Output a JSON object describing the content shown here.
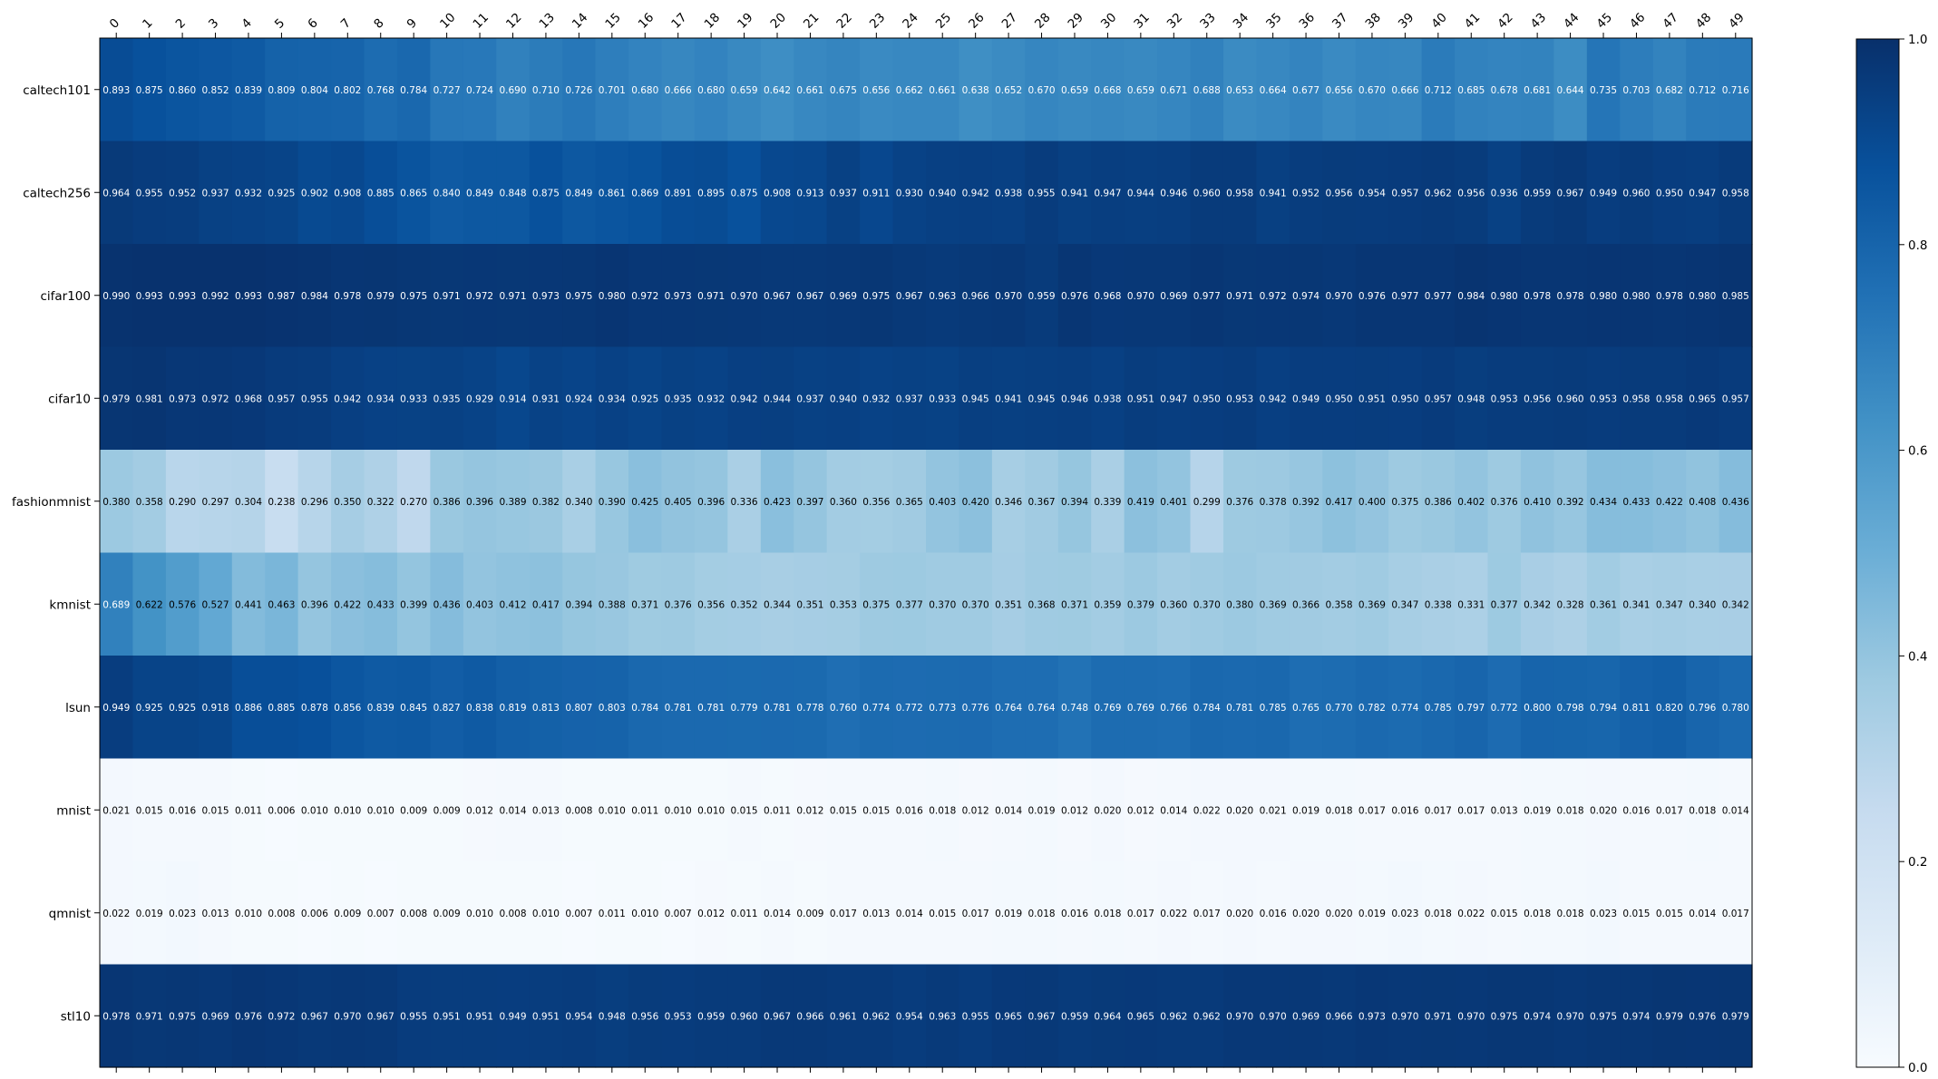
{
  "chart_data": {
    "type": "heatmap",
    "colormap": "Blues",
    "x_labels": [
      "0",
      "1",
      "2",
      "3",
      "4",
      "5",
      "6",
      "7",
      "8",
      "9",
      "10",
      "11",
      "12",
      "13",
      "14",
      "15",
      "16",
      "17",
      "18",
      "19",
      "20",
      "21",
      "22",
      "23",
      "24",
      "25",
      "26",
      "27",
      "28",
      "29",
      "30",
      "31",
      "32",
      "33",
      "34",
      "35",
      "36",
      "37",
      "38",
      "39",
      "40",
      "41",
      "42",
      "43",
      "44",
      "45",
      "46",
      "47",
      "48",
      "49"
    ],
    "y_labels": [
      "caltech101",
      "caltech256",
      "cifar100",
      "cifar10",
      "fashionmnist",
      "kmnist",
      "lsun",
      "mnist",
      "qmnist",
      "stl10"
    ],
    "values": [
      [
        "0.893",
        "0.875",
        "0.860",
        "0.852",
        "0.839",
        "0.809",
        "0.804",
        "0.802",
        "0.768",
        "0.784",
        "0.727",
        "0.724",
        "0.690",
        "0.710",
        "0.726",
        "0.701",
        "0.680",
        "0.666",
        "0.680",
        "0.659",
        "0.642",
        "0.661",
        "0.675",
        "0.656",
        "0.662",
        "0.661",
        "0.638",
        "0.652",
        "0.670",
        "0.659",
        "0.668",
        "0.659",
        "0.671",
        "0.688",
        "0.653",
        "0.664",
        "0.677",
        "0.656",
        "0.670",
        "0.666",
        "0.712",
        "0.685",
        "0.678",
        "0.681",
        "0.644",
        "0.735",
        "0.703",
        "0.682",
        "0.712",
        "0.716"
      ],
      [
        "0.964",
        "0.955",
        "0.952",
        "0.937",
        "0.932",
        "0.925",
        "0.902",
        "0.908",
        "0.885",
        "0.865",
        "0.840",
        "0.849",
        "0.848",
        "0.875",
        "0.849",
        "0.861",
        "0.869",
        "0.891",
        "0.895",
        "0.875",
        "0.908",
        "0.913",
        "0.937",
        "0.911",
        "0.930",
        "0.940",
        "0.942",
        "0.938",
        "0.955",
        "0.941",
        "0.947",
        "0.944",
        "0.946",
        "0.960",
        "0.958",
        "0.941",
        "0.952",
        "0.956",
        "0.954",
        "0.957",
        "0.962",
        "0.956",
        "0.936",
        "0.959",
        "0.967",
        "0.949",
        "0.960",
        "0.950",
        "0.947",
        "0.958"
      ],
      [
        "0.990",
        "0.993",
        "0.993",
        "0.992",
        "0.993",
        "0.987",
        "0.984",
        "0.978",
        "0.979",
        "0.975",
        "0.971",
        "0.972",
        "0.971",
        "0.973",
        "0.975",
        "0.980",
        "0.972",
        "0.973",
        "0.971",
        "0.970",
        "0.967",
        "0.967",
        "0.969",
        "0.975",
        "0.967",
        "0.963",
        "0.966",
        "0.970",
        "0.959",
        "0.976",
        "0.968",
        "0.970",
        "0.969",
        "0.977",
        "0.971",
        "0.972",
        "0.974",
        "0.970",
        "0.976",
        "0.977",
        "0.977",
        "0.984",
        "0.980",
        "0.978",
        "0.978",
        "0.980",
        "0.980",
        "0.978",
        "0.980",
        "0.985"
      ],
      [
        "0.979",
        "0.981",
        "0.973",
        "0.972",
        "0.968",
        "0.957",
        "0.955",
        "0.942",
        "0.934",
        "0.933",
        "0.935",
        "0.929",
        "0.914",
        "0.931",
        "0.924",
        "0.934",
        "0.925",
        "0.935",
        "0.932",
        "0.942",
        "0.944",
        "0.937",
        "0.940",
        "0.932",
        "0.937",
        "0.933",
        "0.945",
        "0.941",
        "0.945",
        "0.946",
        "0.938",
        "0.951",
        "0.947",
        "0.950",
        "0.953",
        "0.942",
        "0.949",
        "0.950",
        "0.951",
        "0.950",
        "0.957",
        "0.948",
        "0.953",
        "0.956",
        "0.960",
        "0.953",
        "0.958",
        "0.958",
        "0.965",
        "0.957"
      ],
      [
        "0.380",
        "0.358",
        "0.290",
        "0.297",
        "0.304",
        "0.238",
        "0.296",
        "0.350",
        "0.322",
        "0.270",
        "0.386",
        "0.396",
        "0.389",
        "0.382",
        "0.340",
        "0.390",
        "0.425",
        "0.405",
        "0.396",
        "0.336",
        "0.423",
        "0.397",
        "0.360",
        "0.356",
        "0.365",
        "0.403",
        "0.420",
        "0.346",
        "0.367",
        "0.394",
        "0.339",
        "0.419",
        "0.401",
        "0.299",
        "0.376",
        "0.378",
        "0.392",
        "0.417",
        "0.400",
        "0.375",
        "0.386",
        "0.402",
        "0.376",
        "0.410",
        "0.392",
        "0.434",
        "0.433",
        "0.422",
        "0.408",
        "0.436"
      ],
      [
        "0.689",
        "0.622",
        "0.576",
        "0.527",
        "0.441",
        "0.463",
        "0.396",
        "0.422",
        "0.433",
        "0.399",
        "0.436",
        "0.403",
        "0.412",
        "0.417",
        "0.394",
        "0.388",
        "0.371",
        "0.376",
        "0.356",
        "0.352",
        "0.344",
        "0.351",
        "0.353",
        "0.375",
        "0.377",
        "0.370",
        "0.370",
        "0.351",
        "0.368",
        "0.371",
        "0.359",
        "0.379",
        "0.360",
        "0.370",
        "0.380",
        "0.369",
        "0.366",
        "0.358",
        "0.369",
        "0.347",
        "0.338",
        "0.331",
        "0.377",
        "0.342",
        "0.328",
        "0.361",
        "0.341",
        "0.347",
        "0.340",
        "0.342"
      ],
      [
        "0.949",
        "0.925",
        "0.925",
        "0.918",
        "0.886",
        "0.885",
        "0.878",
        "0.856",
        "0.839",
        "0.845",
        "0.827",
        "0.838",
        "0.819",
        "0.813",
        "0.807",
        "0.803",
        "0.784",
        "0.781",
        "0.781",
        "0.779",
        "0.781",
        "0.778",
        "0.760",
        "0.774",
        "0.772",
        "0.773",
        "0.776",
        "0.764",
        "0.764",
        "0.748",
        "0.769",
        "0.769",
        "0.766",
        "0.784",
        "0.781",
        "0.785",
        "0.765",
        "0.770",
        "0.782",
        "0.774",
        "0.785",
        "0.797",
        "0.772",
        "0.800",
        "0.798",
        "0.794",
        "0.811",
        "0.820",
        "0.796",
        "0.780"
      ],
      [
        "0.021",
        "0.015",
        "0.016",
        "0.015",
        "0.011",
        "0.006",
        "0.010",
        "0.010",
        "0.010",
        "0.009",
        "0.009",
        "0.012",
        "0.014",
        "0.013",
        "0.008",
        "0.010",
        "0.011",
        "0.010",
        "0.010",
        "0.015",
        "0.011",
        "0.012",
        "0.015",
        "0.015",
        "0.016",
        "0.018",
        "0.012",
        "0.014",
        "0.019",
        "0.012",
        "0.020",
        "0.012",
        "0.014",
        "0.022",
        "0.020",
        "0.021",
        "0.019",
        "0.018",
        "0.017",
        "0.016",
        "0.017",
        "0.017",
        "0.013",
        "0.019",
        "0.018",
        "0.020",
        "0.016",
        "0.017",
        "0.018",
        "0.014"
      ],
      [
        "0.022",
        "0.019",
        "0.023",
        "0.013",
        "0.010",
        "0.008",
        "0.006",
        "0.009",
        "0.007",
        "0.008",
        "0.009",
        "0.010",
        "0.008",
        "0.010",
        "0.007",
        "0.011",
        "0.010",
        "0.007",
        "0.012",
        "0.011",
        "0.014",
        "0.009",
        "0.017",
        "0.013",
        "0.014",
        "0.015",
        "0.017",
        "0.019",
        "0.018",
        "0.016",
        "0.018",
        "0.017",
        "0.022",
        "0.017",
        "0.020",
        "0.016",
        "0.020",
        "0.020",
        "0.019",
        "0.023",
        "0.018",
        "0.022",
        "0.015",
        "0.018",
        "0.018",
        "0.023",
        "0.015",
        "0.015",
        "0.014",
        "0.017"
      ],
      [
        "0.978",
        "0.971",
        "0.975",
        "0.969",
        "0.976",
        "0.972",
        "0.967",
        "0.970",
        "0.967",
        "0.955",
        "0.951",
        "0.951",
        "0.949",
        "0.951",
        "0.954",
        "0.948",
        "0.956",
        "0.953",
        "0.959",
        "0.960",
        "0.967",
        "0.966",
        "0.961",
        "0.962",
        "0.954",
        "0.963",
        "0.955",
        "0.965",
        "0.967",
        "0.959",
        "0.964",
        "0.965",
        "0.962",
        "0.962",
        "0.970",
        "0.970",
        "0.969",
        "0.966",
        "0.973",
        "0.970",
        "0.971",
        "0.970",
        "0.975",
        "0.974",
        "0.970",
        "0.975",
        "0.974",
        "0.979",
        "0.976",
        "0.979"
      ]
    ],
    "colorbar": {
      "range": [
        0.0,
        1.0
      ],
      "ticks": [
        "0.0",
        "0.2",
        "0.4",
        "0.6",
        "0.8",
        "1.0"
      ]
    }
  }
}
